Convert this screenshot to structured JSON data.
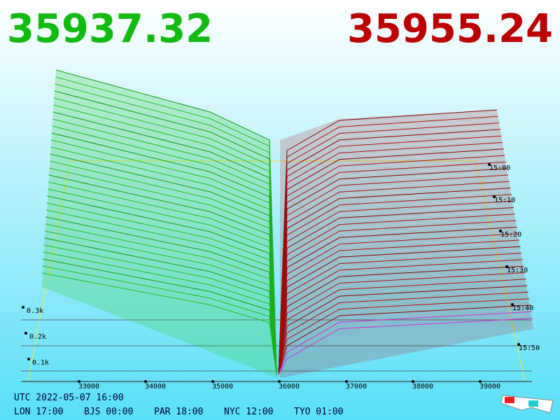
{
  "header": {
    "bid": "35937.32",
    "ask": "35955.24"
  },
  "price_axis": [
    "33000",
    "34000",
    "35000",
    "36000",
    "37000",
    "38000",
    "39000"
  ],
  "depth_axis": [
    "0.3k",
    "0.2k",
    "0.1k"
  ],
  "time_axis": [
    "15:00",
    "15:10",
    "15:20",
    "15:30",
    "15:40",
    "15:50"
  ],
  "footer": {
    "utc": "UTC 2022-05-07 16:00",
    "cities": [
      "LON 17:00",
      "BJS 00:00",
      "PAR 18:00",
      "NYC 12:00",
      "TYO 01:00"
    ]
  }
}
